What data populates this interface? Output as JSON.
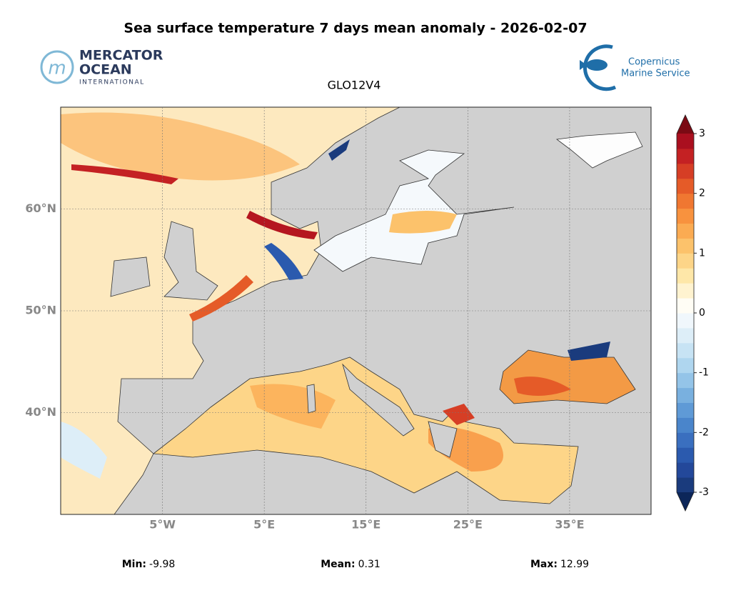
{
  "header": {
    "title": "Sea surface temperature 7 days mean anomaly - 2026-02-07",
    "left_logo": [
      "MERCATOR",
      "OCEAN",
      "INTERNATIONAL"
    ],
    "right_logo": [
      "Copernicus",
      "Marine Service"
    ],
    "subtitle": "GLO12V4"
  },
  "map": {
    "xlim": [
      -15,
      43
    ],
    "ylim": [
      30,
      70
    ],
    "yticks": [
      {
        "value": 60,
        "label": "60°N"
      },
      {
        "value": 50,
        "label": "50°N"
      },
      {
        "value": 40,
        "label": "40°N"
      }
    ],
    "xticks": [
      {
        "value": -5,
        "label": "5°W"
      },
      {
        "value": 5,
        "label": "5°E"
      },
      {
        "value": 15,
        "label": "15°E"
      },
      {
        "value": 25,
        "label": "25°E"
      },
      {
        "value": 35,
        "label": "35°E"
      }
    ],
    "grid": true
  },
  "colorbar": {
    "lim": [
      -3,
      3
    ],
    "ticks": [
      3,
      2,
      1,
      0,
      -1,
      -2,
      -3
    ],
    "colors": [
      "#1a3b7d",
      "#23489a",
      "#2b5aae",
      "#3a6fbf",
      "#4a85cb",
      "#5f9ad6",
      "#79b0df",
      "#94c4e8",
      "#afd6ef",
      "#c7e3f4",
      "#ddeef8",
      "#f0f7fc",
      "#fffdf5",
      "#fff3d0",
      "#fee7a8",
      "#fdd588",
      "#fcc26b",
      "#fbab52",
      "#f8923e",
      "#f07731",
      "#e55b28",
      "#d63e25",
      "#c42123",
      "#aa0f1f"
    ],
    "extend_colors": [
      "#0c2659",
      "#7b0a14"
    ]
  },
  "stats": [
    {
      "label": "Min:",
      "value": -9.98
    },
    {
      "label": "Mean:",
      "value": 0.31
    },
    {
      "label": "Max:",
      "value": 12.99
    }
  ]
}
